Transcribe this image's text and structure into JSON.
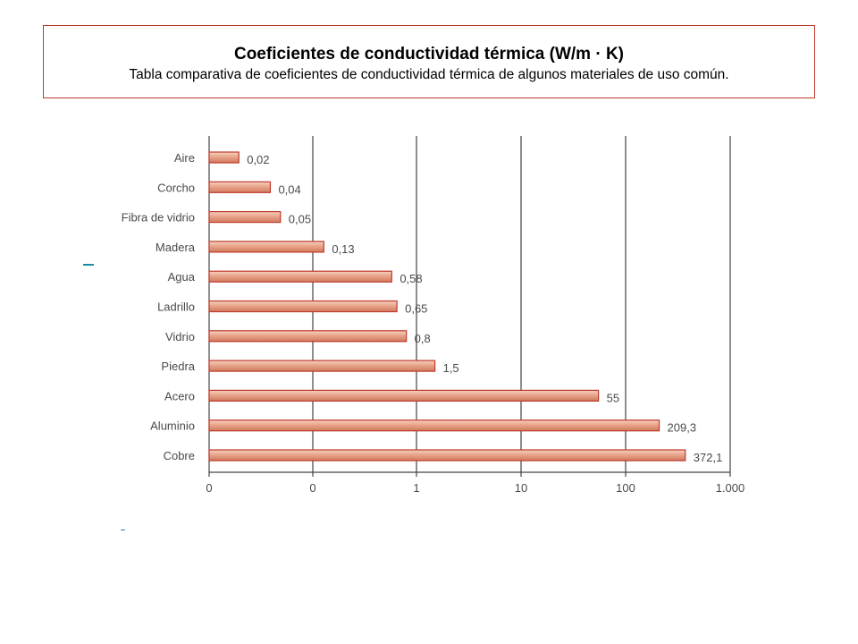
{
  "header": {
    "title": "Coeficientes de conductividad térmica (W/m · K)",
    "subtitle": "Tabla comparativa de coeficientes de conductividad térmica de algunos materiales de uso común."
  },
  "chart_data": {
    "type": "bar",
    "orientation": "horizontal",
    "title": "",
    "xlabel": "",
    "ylabel": "",
    "x_scale": "log",
    "x_ticks": [
      "0",
      "0",
      "1",
      "10",
      "100",
      "1.000"
    ],
    "grid": "vertical",
    "categories": [
      "Aire",
      "Corcho",
      "Fibra de vidrio",
      "Madera",
      "Agua",
      "Ladrillo",
      "Vidrio",
      "Piedra",
      "Acero",
      "Aluminio",
      "Cobre"
    ],
    "values": [
      0.02,
      0.04,
      0.05,
      0.13,
      0.58,
      0.65,
      0.8,
      1.5,
      55,
      209.3,
      372.1
    ],
    "value_labels": [
      "0,02",
      "0,04",
      "0,05",
      "0,13",
      "0,58",
      "0,65",
      "0,8",
      "1,5",
      "55",
      "209,3",
      "372,1"
    ],
    "colors": {
      "bar_fill": "#e8a48a",
      "bar_edge": "#c0392b",
      "grid": "#444444"
    }
  }
}
